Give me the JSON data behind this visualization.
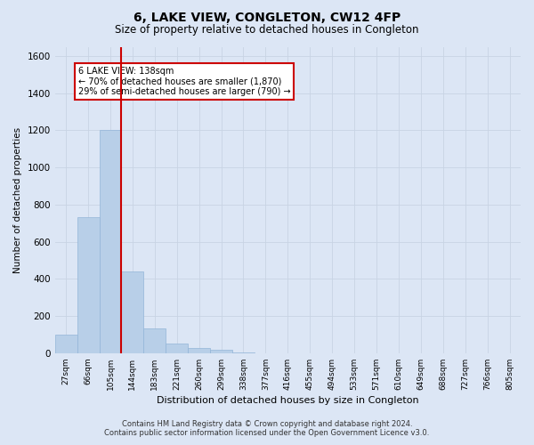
{
  "title": "6, LAKE VIEW, CONGLETON, CW12 4FP",
  "subtitle": "Size of property relative to detached houses in Congleton",
  "xlabel": "Distribution of detached houses by size in Congleton",
  "ylabel": "Number of detached properties",
  "footer_line1": "Contains HM Land Registry data © Crown copyright and database right 2024.",
  "footer_line2": "Contains public sector information licensed under the Open Government Licence v3.0.",
  "bar_labels": [
    "27sqm",
    "66sqm",
    "105sqm",
    "144sqm",
    "183sqm",
    "221sqm",
    "260sqm",
    "299sqm",
    "338sqm",
    "377sqm",
    "416sqm",
    "455sqm",
    "494sqm",
    "533sqm",
    "571sqm",
    "610sqm",
    "649sqm",
    "688sqm",
    "727sqm",
    "766sqm",
    "805sqm"
  ],
  "bar_values": [
    100,
    730,
    1200,
    440,
    135,
    50,
    30,
    20,
    5,
    0,
    0,
    0,
    0,
    0,
    0,
    0,
    0,
    0,
    0,
    0,
    0
  ],
  "bar_color": "#b8cfe8",
  "bar_edge_color": "#93b5d8",
  "marker_line_color": "#cc0000",
  "annotation_text": "6 LAKE VIEW: 138sqm\n← 70% of detached houses are smaller (1,870)\n29% of semi-detached houses are larger (790) →",
  "annotation_box_color": "#ffffff",
  "annotation_box_edge_color": "#cc0000",
  "ylim": [
    0,
    1650
  ],
  "yticks": [
    0,
    200,
    400,
    600,
    800,
    1000,
    1200,
    1400,
    1600
  ],
  "grid_color": "#c8d4e4",
  "bg_color": "#dce6f5",
  "plot_bg_color": "#dce6f5"
}
